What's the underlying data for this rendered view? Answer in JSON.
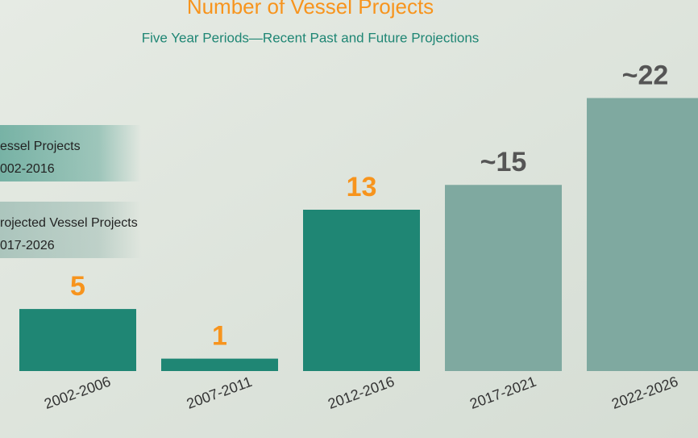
{
  "chart_data": {
    "type": "bar",
    "title": "Number of Vessel Projects",
    "subtitle": "Five Year Periods—Recent Past and Future Projections",
    "categories": [
      "2002-2006",
      "2007-2011",
      "2012-2016",
      "2017-2021",
      "2022-2026"
    ],
    "values": [
      5,
      1,
      13,
      15,
      22
    ],
    "value_labels": [
      "5",
      "1",
      "13",
      "~15",
      "~22"
    ],
    "colors": [
      "#1f8674",
      "#1f8674",
      "#1f8674",
      "#7fa9a0",
      "#7fa9a0"
    ],
    "label_colors": [
      "#f7941d",
      "#f7941d",
      "#f7941d",
      "#555555",
      "#555555"
    ],
    "ylim": [
      0,
      26
    ],
    "legend": [
      {
        "lines": [
          "essel Projects",
          "002-2016"
        ],
        "color": "#1f8674"
      },
      {
        "lines": [
          "rojected Vessel Projects",
          "017-2026"
        ],
        "color": "#7fa9a0"
      }
    ]
  }
}
